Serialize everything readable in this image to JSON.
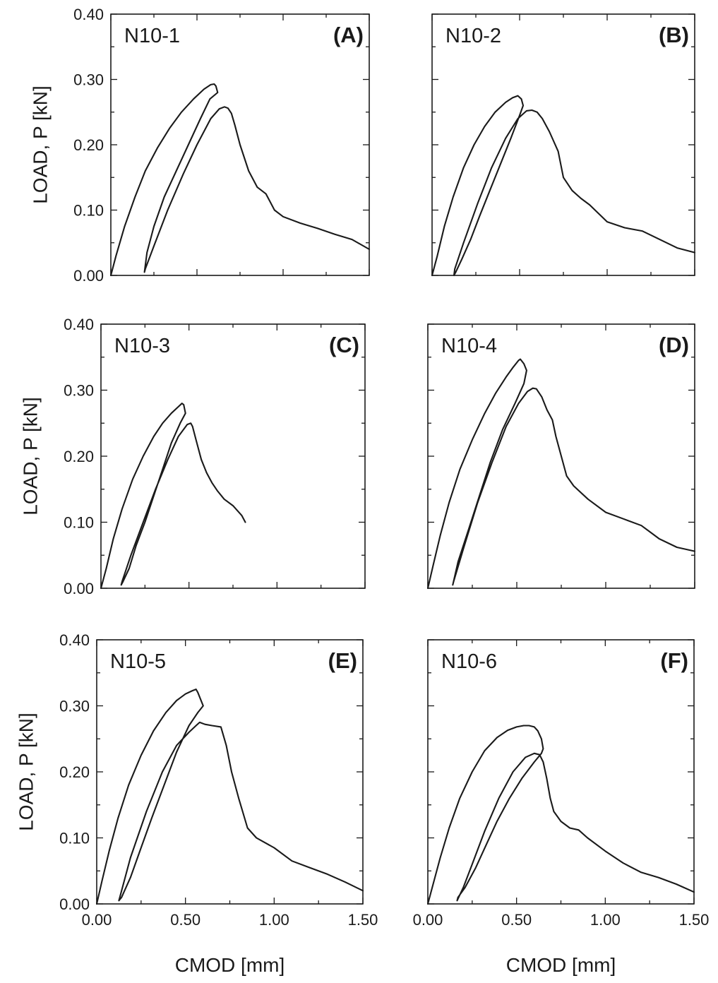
{
  "chart_data": [
    {
      "type": "line",
      "panel_label": "(A)",
      "specimen": "N10-1",
      "ylabel": "LOAD, P [kN]",
      "xlabel": "",
      "xlim": [
        0.0,
        1.5
      ],
      "ylim": [
        0.0,
        0.4
      ],
      "yticks": [
        "0.00",
        "0.10",
        "0.20",
        "0.30",
        "0.40"
      ],
      "xticks": [],
      "series": [
        {
          "x": [
            0.0,
            0.03,
            0.08,
            0.14,
            0.2,
            0.27,
            0.34,
            0.41,
            0.48,
            0.54,
            0.58,
            0.6,
            0.61,
            0.62,
            0.575,
            0.52,
            0.45,
            0.38,
            0.31,
            0.25,
            0.21,
            0.195,
            0.2,
            0.25,
            0.33,
            0.42,
            0.5,
            0.58,
            0.63,
            0.66,
            0.68,
            0.7,
            0.72,
            0.75,
            0.8,
            0.85,
            0.9,
            0.92,
            0.95,
            1.0,
            1.1,
            1.2,
            1.3,
            1.4,
            1.5
          ],
          "y": [
            0.0,
            0.03,
            0.075,
            0.12,
            0.16,
            0.195,
            0.225,
            0.25,
            0.27,
            0.285,
            0.292,
            0.293,
            0.29,
            0.28,
            0.27,
            0.24,
            0.2,
            0.16,
            0.12,
            0.075,
            0.035,
            0.005,
            0.01,
            0.045,
            0.1,
            0.155,
            0.2,
            0.24,
            0.255,
            0.258,
            0.256,
            0.248,
            0.23,
            0.2,
            0.16,
            0.135,
            0.125,
            0.115,
            0.1,
            0.09,
            0.08,
            0.072,
            0.063,
            0.055,
            0.04
          ]
        }
      ]
    },
    {
      "type": "line",
      "panel_label": "(B)",
      "specimen": "N10-2",
      "ylabel": "",
      "xlabel": "",
      "xlim": [
        0.0,
        1.5
      ],
      "ylim": [
        0.0,
        0.4
      ],
      "yticks": [],
      "xticks": [],
      "series": [
        {
          "x": [
            0.0,
            0.03,
            0.07,
            0.12,
            0.18,
            0.24,
            0.3,
            0.36,
            0.42,
            0.46,
            0.49,
            0.51,
            0.52,
            0.5,
            0.45,
            0.39,
            0.33,
            0.27,
            0.22,
            0.17,
            0.135,
            0.125,
            0.13,
            0.18,
            0.26,
            0.34,
            0.42,
            0.49,
            0.54,
            0.57,
            0.6,
            0.63,
            0.67,
            0.72,
            0.75,
            0.8,
            0.85,
            0.9,
            0.95,
            1.0,
            1.1,
            1.2,
            1.3,
            1.4,
            1.5
          ],
          "y": [
            0.0,
            0.03,
            0.075,
            0.12,
            0.165,
            0.2,
            0.228,
            0.25,
            0.265,
            0.272,
            0.275,
            0.27,
            0.26,
            0.245,
            0.21,
            0.17,
            0.13,
            0.09,
            0.055,
            0.025,
            0.005,
            0.0,
            0.01,
            0.05,
            0.11,
            0.165,
            0.21,
            0.24,
            0.252,
            0.253,
            0.25,
            0.24,
            0.22,
            0.19,
            0.15,
            0.13,
            0.118,
            0.108,
            0.095,
            0.082,
            0.073,
            0.068,
            0.055,
            0.042,
            0.035
          ]
        }
      ]
    },
    {
      "type": "line",
      "panel_label": "(C)",
      "specimen": "N10-3",
      "ylabel": "LOAD, P [kN]",
      "xlabel": "",
      "xlim": [
        0.0,
        1.5
      ],
      "ylim": [
        0.0,
        0.4
      ],
      "yticks": [
        "0.00",
        "0.10",
        "0.20",
        "0.30",
        "0.40"
      ],
      "xticks": [],
      "series": [
        {
          "x": [
            0.0,
            0.03,
            0.07,
            0.12,
            0.18,
            0.24,
            0.3,
            0.35,
            0.4,
            0.44,
            0.46,
            0.47,
            0.48,
            0.45,
            0.4,
            0.35,
            0.3,
            0.25,
            0.2,
            0.16,
            0.125,
            0.115,
            0.12,
            0.17,
            0.24,
            0.31,
            0.38,
            0.44,
            0.49,
            0.51,
            0.52,
            0.54,
            0.57,
            0.6,
            0.63,
            0.66,
            0.7,
            0.75,
            0.8,
            0.82
          ],
          "y": [
            0.0,
            0.03,
            0.075,
            0.12,
            0.165,
            0.2,
            0.23,
            0.25,
            0.265,
            0.275,
            0.28,
            0.278,
            0.265,
            0.25,
            0.22,
            0.18,
            0.14,
            0.1,
            0.065,
            0.03,
            0.01,
            0.005,
            0.01,
            0.05,
            0.1,
            0.15,
            0.195,
            0.23,
            0.248,
            0.25,
            0.245,
            0.225,
            0.195,
            0.175,
            0.16,
            0.148,
            0.135,
            0.125,
            0.11,
            0.1
          ]
        }
      ]
    },
    {
      "type": "line",
      "panel_label": "(D)",
      "specimen": "N10-4",
      "ylabel": "",
      "xlabel": "",
      "xlim": [
        0.0,
        1.5
      ],
      "ylim": [
        0.0,
        0.4
      ],
      "yticks": [],
      "xticks": [],
      "series": [
        {
          "x": [
            0.0,
            0.03,
            0.07,
            0.12,
            0.18,
            0.25,
            0.32,
            0.38,
            0.44,
            0.48,
            0.51,
            0.52,
            0.54,
            0.555,
            0.54,
            0.49,
            0.42,
            0.35,
            0.29,
            0.23,
            0.17,
            0.14,
            0.145,
            0.2,
            0.28,
            0.36,
            0.44,
            0.51,
            0.56,
            0.59,
            0.61,
            0.64,
            0.67,
            0.7,
            0.72,
            0.75,
            0.78,
            0.82,
            0.9,
            1.0,
            1.1,
            1.2,
            1.25,
            1.3,
            1.4,
            1.5
          ],
          "y": [
            0.0,
            0.035,
            0.08,
            0.13,
            0.18,
            0.225,
            0.265,
            0.295,
            0.32,
            0.335,
            0.345,
            0.347,
            0.34,
            0.33,
            0.31,
            0.28,
            0.24,
            0.19,
            0.14,
            0.09,
            0.04,
            0.005,
            0.01,
            0.06,
            0.13,
            0.19,
            0.245,
            0.28,
            0.298,
            0.303,
            0.302,
            0.29,
            0.27,
            0.255,
            0.23,
            0.2,
            0.17,
            0.155,
            0.135,
            0.115,
            0.105,
            0.095,
            0.085,
            0.075,
            0.062,
            0.056
          ]
        }
      ]
    },
    {
      "type": "line",
      "panel_label": "(E)",
      "specimen": "N10-5",
      "ylabel": "LOAD, P [kN]",
      "xlabel": "CMOD [mm]",
      "xlim": [
        0.0,
        1.5
      ],
      "ylim": [
        0.0,
        0.4
      ],
      "yticks": [
        "0.00",
        "0.10",
        "0.20",
        "0.30",
        "0.40"
      ],
      "xticks": [
        "0.00",
        "0.50",
        "1.00",
        "1.50"
      ],
      "series": [
        {
          "x": [
            0.0,
            0.03,
            0.07,
            0.12,
            0.18,
            0.25,
            0.32,
            0.39,
            0.45,
            0.5,
            0.54,
            0.56,
            0.57,
            0.6,
            0.57,
            0.52,
            0.45,
            0.38,
            0.31,
            0.25,
            0.19,
            0.14,
            0.125,
            0.13,
            0.19,
            0.28,
            0.37,
            0.45,
            0.52,
            0.56,
            0.58,
            0.61,
            0.65,
            0.7,
            0.73,
            0.76,
            0.8,
            0.85,
            0.9,
            1.0,
            1.1,
            1.2,
            1.3,
            1.4,
            1.5
          ],
          "y": [
            0.0,
            0.035,
            0.08,
            0.13,
            0.18,
            0.225,
            0.262,
            0.29,
            0.308,
            0.318,
            0.323,
            0.325,
            0.32,
            0.3,
            0.29,
            0.27,
            0.23,
            0.18,
            0.13,
            0.085,
            0.04,
            0.01,
            0.005,
            0.01,
            0.07,
            0.14,
            0.2,
            0.24,
            0.26,
            0.27,
            0.275,
            0.272,
            0.27,
            0.268,
            0.24,
            0.2,
            0.16,
            0.115,
            0.1,
            0.085,
            0.065,
            0.055,
            0.045,
            0.033,
            0.02
          ]
        }
      ]
    },
    {
      "type": "line",
      "panel_label": "(F)",
      "specimen": "N10-6",
      "ylabel": "",
      "xlabel": "CMOD [mm]",
      "xlim": [
        0.0,
        1.5
      ],
      "ylim": [
        0.0,
        0.4
      ],
      "yticks": [],
      "xticks": [
        "0.00",
        "0.50",
        "1.00",
        "1.50"
      ],
      "series": [
        {
          "x": [
            0.0,
            0.03,
            0.07,
            0.12,
            0.18,
            0.25,
            0.32,
            0.39,
            0.45,
            0.5,
            0.54,
            0.57,
            0.6,
            0.62,
            0.64,
            0.65,
            0.64,
            0.6,
            0.53,
            0.46,
            0.39,
            0.33,
            0.27,
            0.21,
            0.17,
            0.165,
            0.2,
            0.25,
            0.32,
            0.4,
            0.48,
            0.55,
            0.6,
            0.63,
            0.65,
            0.67,
            0.69,
            0.71,
            0.75,
            0.8,
            0.85,
            0.9,
            1.0,
            1.1,
            1.2,
            1.3,
            1.4,
            1.5
          ],
          "y": [
            0.0,
            0.03,
            0.07,
            0.115,
            0.16,
            0.2,
            0.232,
            0.252,
            0.263,
            0.268,
            0.27,
            0.27,
            0.268,
            0.262,
            0.25,
            0.235,
            0.228,
            0.215,
            0.19,
            0.16,
            0.125,
            0.09,
            0.055,
            0.025,
            0.01,
            0.005,
            0.025,
            0.06,
            0.11,
            0.16,
            0.2,
            0.222,
            0.228,
            0.226,
            0.215,
            0.19,
            0.16,
            0.14,
            0.125,
            0.115,
            0.112,
            0.1,
            0.08,
            0.062,
            0.048,
            0.04,
            0.03,
            0.018
          ]
        }
      ]
    }
  ]
}
